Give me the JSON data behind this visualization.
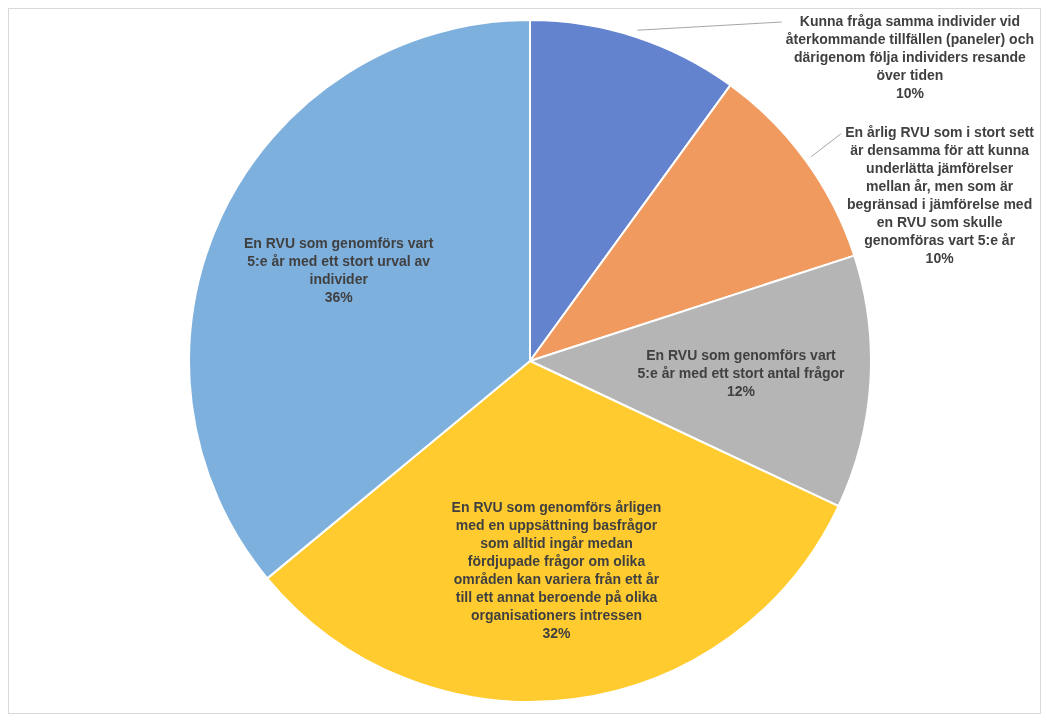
{
  "chart_data": {
    "type": "pie",
    "categories": [
      "Kunna fråga samma individer vid återkommande tillfällen (paneler) och därigenom följa individers resande över tiden",
      "En årlig RVU som i stort sett är densamma för att kunna underlätta jämförelser mellan år, men som är begränsad i jämförelse med en RVU som skulle genomföras vart 5:e år",
      "En RVU som genomförs vart 5:e år med ett stort antal frågor",
      "En RVU som genomförs årligen med en uppsättning basfrågor som alltid ingår medan fördjupade frågor om olika områden kan variera från ett år till ett annat beroende på olika organisationers intressen",
      "En RVU som genomförs vart 5:e år med ett stort urval av individer"
    ],
    "values": [
      10,
      10,
      12,
      32,
      36
    ],
    "colors": [
      "#6383cf",
      "#f09a5f",
      "#b5b5b5",
      "#ffcb2e",
      "#7eb0de"
    ],
    "value_labels": [
      "10%",
      "10%",
      "12%",
      "32%",
      "36%"
    ],
    "legend": false
  }
}
